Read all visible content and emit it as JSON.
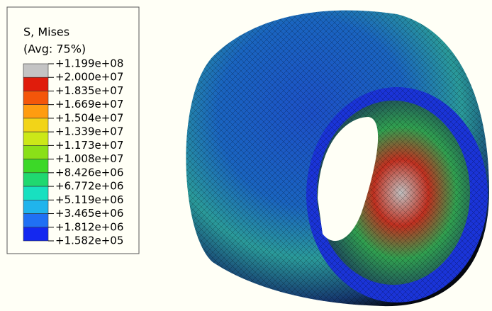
{
  "legend": {
    "title": "S, Mises",
    "subtitle": "(Avg: 75%)",
    "labels": [
      "+1.199e+08",
      "+2.000e+07",
      "+1.835e+07",
      "+1.669e+07",
      "+1.504e+07",
      "+1.339e+07",
      "+1.173e+07",
      "+1.008e+07",
      "+8.426e+06",
      "+6.772e+06",
      "+5.119e+06",
      "+3.465e+06",
      "+1.812e+06",
      "+1.582e+05"
    ],
    "colors": [
      "#c4c4c4",
      "#e01c0c",
      "#f4560a",
      "#ff9c10",
      "#f2d418",
      "#cce818",
      "#8ae018",
      "#3cd828",
      "#20d870",
      "#18e0c0",
      "#20b4ec",
      "#2070f4",
      "#1428f0"
    ]
  }
}
